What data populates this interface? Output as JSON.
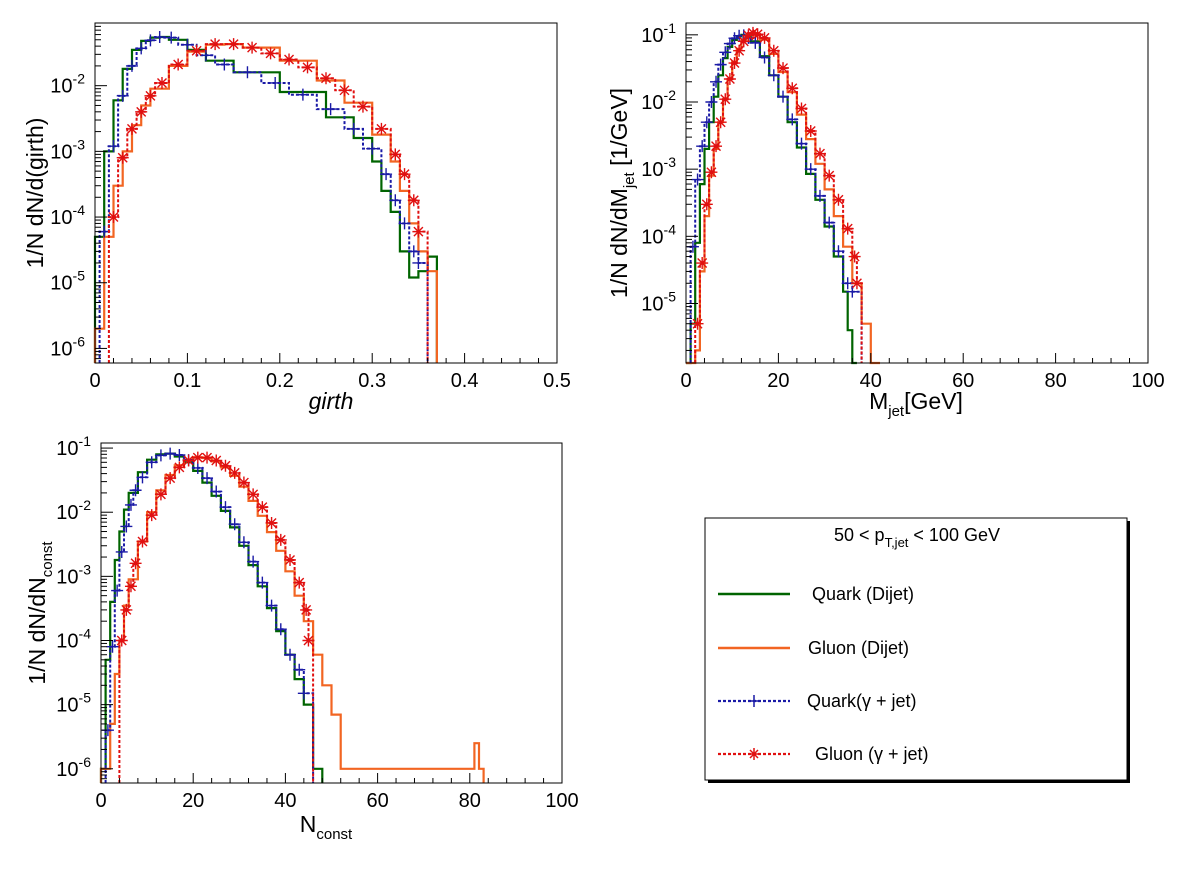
{
  "colors": {
    "quark_dijet": "#006400",
    "gluon_dijet": "#f26522",
    "quark_gamma": "#1a1aa6",
    "gluon_gamma": "#e01010"
  },
  "legend": {
    "header_pre": "50 < p",
    "header_sub": "T,jet",
    "header_post": " < 100 GeV",
    "entries": [
      "Quark (Dijet)",
      "Gluon (Dijet)",
      "Quark(γ + jet)",
      "Gluon (γ + jet)"
    ]
  },
  "chart_data": [
    {
      "type": "line",
      "panel": "girth",
      "xlabel": "girth",
      "ylabel": "1/N dN/d(girth)",
      "xlim": [
        0,
        0.5
      ],
      "ylim": [
        6e-07,
        0.09
      ],
      "log_y": true,
      "x_ticks": [
        "0",
        "0.1",
        "0.2",
        "0.3",
        "0.4",
        "0.5"
      ],
      "y_ticks": [
        "10-6",
        "10-5",
        "10-4",
        "10-3",
        "10-2"
      ],
      "series": [
        {
          "name": "Quark (Dijet)",
          "x": [
            0,
            0.01,
            0.02,
            0.03,
            0.04,
            0.05,
            0.06,
            0.07,
            0.08,
            0.1,
            0.12,
            0.15,
            0.2,
            0.25,
            0.28,
            0.3,
            0.31,
            0.32,
            0.33,
            0.34,
            0.35,
            0.36
          ],
          "y": [
            5e-05,
            0.001,
            0.006,
            0.018,
            0.035,
            0.048,
            0.054,
            0.055,
            0.05,
            0.035,
            0.024,
            0.016,
            0.008,
            0.0033,
            0.0016,
            0.0007,
            0.00025,
            0.00012,
            3e-05,
            1.2e-05,
            1.5e-05,
            2.5e-05
          ]
        },
        {
          "name": "Gluon (Dijet)",
          "x": [
            0,
            0.01,
            0.02,
            0.03,
            0.04,
            0.05,
            0.06,
            0.08,
            0.1,
            0.12,
            0.14,
            0.16,
            0.2,
            0.24,
            0.27,
            0.3,
            0.32,
            0.33,
            0.34,
            0.35,
            0.36
          ],
          "y": [
            2e-06,
            5e-05,
            0.0003,
            0.001,
            0.0025,
            0.005,
            0.009,
            0.02,
            0.033,
            0.042,
            0.043,
            0.038,
            0.024,
            0.012,
            0.0055,
            0.0018,
            0.0007,
            0.00025,
            8e-05,
            3e-05,
            1.5e-05
          ]
        },
        {
          "name": "Quark(γ + jet)",
          "x": [
            0.005,
            0.015,
            0.025,
            0.035,
            0.045,
            0.055,
            0.065,
            0.075,
            0.09,
            0.11,
            0.13,
            0.15,
            0.18,
            0.21,
            0.24,
            0.27,
            0.29,
            0.31,
            0.32,
            0.33,
            0.34,
            0.35
          ],
          "y": [
            6e-05,
            0.0012,
            0.007,
            0.02,
            0.037,
            0.049,
            0.055,
            0.054,
            0.042,
            0.029,
            0.021,
            0.016,
            0.011,
            0.0073,
            0.0044,
            0.0022,
            0.0011,
            0.00045,
            0.00018,
            8e-05,
            3e-05,
            2e-05
          ]
        },
        {
          "name": "Gluon (γ + jet)",
          "x": [
            0.015,
            0.025,
            0.035,
            0.045,
            0.055,
            0.065,
            0.08,
            0.1,
            0.12,
            0.14,
            0.16,
            0.18,
            0.2,
            0.22,
            0.24,
            0.26,
            0.28,
            0.3,
            0.32,
            0.33,
            0.34,
            0.35
          ],
          "y": [
            0.0001,
            0.0008,
            0.0022,
            0.004,
            0.007,
            0.011,
            0.021,
            0.034,
            0.043,
            0.043,
            0.038,
            0.031,
            0.025,
            0.019,
            0.013,
            0.0085,
            0.0048,
            0.0022,
            0.0009,
            0.00045,
            0.00018,
            6e-05
          ]
        }
      ]
    },
    {
      "type": "line",
      "panel": "mass",
      "xlabel": "M",
      "xlabel_sub": "jet",
      "xlabel_post": "[GeV]",
      "ylabel": "1/N dN/dM",
      "ylabel_sub": "jet",
      "ylabel_post": " [1/GeV]",
      "xlim": [
        0,
        100
      ],
      "ylim": [
        1.3e-06,
        0.15
      ],
      "log_y": true,
      "x_ticks": [
        "0",
        "20",
        "40",
        "60",
        "80",
        "100"
      ],
      "y_ticks": [
        "10-5",
        "10-4",
        "10-3",
        "10-2",
        "10-1"
      ],
      "series": [
        {
          "name": "Quark (Dijet)",
          "x": [
            0,
            1,
            2,
            3,
            4,
            5,
            6,
            7,
            8,
            9,
            10,
            11,
            12,
            13,
            14,
            16,
            18,
            20,
            22,
            24,
            26,
            28,
            30,
            32,
            34,
            35,
            36
          ],
          "y": [
            1e-06,
            5e-06,
            8e-05,
            0.0006,
            0.002,
            0.005,
            0.012,
            0.025,
            0.045,
            0.066,
            0.084,
            0.095,
            0.1,
            0.095,
            0.08,
            0.048,
            0.025,
            0.012,
            0.005,
            0.0021,
            0.00085,
            0.00035,
            0.00014,
            5e-05,
            1.5e-05,
            4e-06,
            1e-06
          ]
        },
        {
          "name": "Gluon (Dijet)",
          "x": [
            0,
            1,
            2,
            3,
            4,
            5,
            6,
            7,
            8,
            9,
            10,
            11,
            12,
            13,
            14,
            15,
            16,
            18,
            20,
            22,
            24,
            26,
            28,
            30,
            32,
            34,
            36,
            38,
            40
          ],
          "y": [
            1e-06,
            1e-06,
            2e-06,
            3e-05,
            0.0002,
            0.0008,
            0.002,
            0.005,
            0.011,
            0.022,
            0.04,
            0.062,
            0.085,
            0.1,
            0.105,
            0.1,
            0.085,
            0.052,
            0.028,
            0.014,
            0.0065,
            0.0028,
            0.0012,
            0.0005,
            0.0002,
            7e-05,
            2e-05,
            5e-06,
            1e-06
          ]
        },
        {
          "name": "Quark(γ + jet)",
          "x": [
            1,
            2,
            3,
            4,
            5,
            6,
            7,
            8,
            9,
            10,
            11,
            12,
            13,
            14,
            16,
            18,
            20,
            22,
            24,
            26,
            28,
            30,
            32,
            34,
            36
          ],
          "y": [
            7e-05,
            0.0007,
            0.0022,
            0.005,
            0.01,
            0.02,
            0.036,
            0.055,
            0.074,
            0.089,
            0.097,
            0.098,
            0.09,
            0.076,
            0.046,
            0.025,
            0.012,
            0.0055,
            0.0024,
            0.001,
            0.0004,
            0.00016,
            6e-05,
            2e-05,
            1.5e-05
          ]
        },
        {
          "name": "Gluon (γ + jet)",
          "x": [
            2,
            3,
            4,
            5,
            6,
            7,
            8,
            9,
            10,
            11,
            12,
            13,
            14,
            15,
            16,
            18,
            20,
            22,
            24,
            26,
            28,
            30,
            32,
            34,
            36,
            37
          ],
          "y": [
            5e-06,
            4e-05,
            0.0003,
            0.0009,
            0.0022,
            0.005,
            0.011,
            0.022,
            0.038,
            0.058,
            0.08,
            0.098,
            0.107,
            0.102,
            0.09,
            0.058,
            0.032,
            0.016,
            0.008,
            0.0037,
            0.0017,
            0.0008,
            0.00035,
            0.00013,
            5e-05,
            2e-05
          ]
        }
      ]
    },
    {
      "type": "line",
      "panel": "nconst",
      "xlabel": "N",
      "xlabel_sub": "const",
      "ylabel": "1/N dN/dN",
      "ylabel_sub": "const",
      "xlim": [
        0,
        100
      ],
      "ylim": [
        6e-07,
        0.12
      ],
      "log_y": true,
      "x_ticks": [
        "0",
        "20",
        "40",
        "60",
        "80",
        "100"
      ],
      "y_ticks": [
        "10-6",
        "10-5",
        "10-4",
        "10-3",
        "10-2",
        "10-1"
      ],
      "series": [
        {
          "name": "Quark (Dijet)",
          "x": [
            0,
            1,
            2,
            3,
            4,
            5,
            6,
            8,
            10,
            12,
            14,
            16,
            18,
            20,
            22,
            24,
            26,
            28,
            30,
            32,
            34,
            36,
            38,
            40,
            42,
            44,
            46
          ],
          "y": [
            1e-06,
            5e-05,
            0.0004,
            0.0018,
            0.005,
            0.011,
            0.02,
            0.042,
            0.066,
            0.08,
            0.082,
            0.074,
            0.06,
            0.044,
            0.029,
            0.018,
            0.0105,
            0.0058,
            0.003,
            0.0015,
            0.0007,
            0.00032,
            0.00014,
            6e-05,
            2.5e-05,
            1e-05,
            1e-06
          ]
        },
        {
          "name": "Gluon (Dijet)",
          "x": [
            0,
            2,
            3,
            4,
            5,
            6,
            8,
            10,
            12,
            14,
            16,
            18,
            20,
            22,
            24,
            26,
            28,
            30,
            32,
            34,
            36,
            38,
            40,
            42,
            44,
            46,
            48,
            50,
            52,
            80,
            81,
            82
          ],
          "y": [
            1e-06,
            5e-06,
            3e-05,
            0.0001,
            0.00035,
            0.0009,
            0.0035,
            0.01,
            0.022,
            0.038,
            0.054,
            0.066,
            0.072,
            0.07,
            0.062,
            0.05,
            0.037,
            0.025,
            0.015,
            0.0088,
            0.0049,
            0.0025,
            0.0012,
            0.0005,
            0.0002,
            6e-05,
            2e-05,
            7e-06,
            1e-06,
            1e-06,
            2.5e-06,
            1e-06
          ]
        },
        {
          "name": "Quark(γ + jet)",
          "x": [
            1,
            2,
            3,
            4,
            5,
            6,
            7,
            8,
            10,
            12,
            14,
            16,
            18,
            20,
            22,
            24,
            26,
            28,
            30,
            32,
            34,
            36,
            38,
            40,
            42,
            44
          ],
          "y": [
            4e-06,
            8e-05,
            0.0006,
            0.0024,
            0.006,
            0.013,
            0.022,
            0.035,
            0.06,
            0.077,
            0.082,
            0.078,
            0.065,
            0.049,
            0.034,
            0.021,
            0.012,
            0.0065,
            0.0034,
            0.0017,
            0.0008,
            0.00035,
            0.00015,
            6e-05,
            3.5e-05,
            1.5e-05
          ]
        },
        {
          "name": "Gluon (γ + jet)",
          "x": [
            4,
            5,
            6,
            7,
            8,
            10,
            12,
            14,
            16,
            18,
            20,
            22,
            24,
            26,
            28,
            30,
            32,
            34,
            36,
            38,
            40,
            42,
            44,
            45
          ],
          "y": [
            0.0001,
            0.0003,
            0.0007,
            0.0016,
            0.0035,
            0.009,
            0.019,
            0.034,
            0.05,
            0.064,
            0.071,
            0.071,
            0.064,
            0.053,
            0.041,
            0.029,
            0.019,
            0.012,
            0.0068,
            0.0037,
            0.0018,
            0.0008,
            0.0003,
            0.0001
          ]
        }
      ]
    }
  ]
}
